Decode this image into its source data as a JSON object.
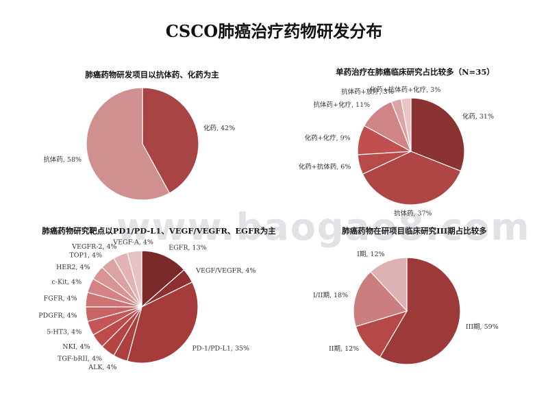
{
  "page": {
    "title": "CSCO肺癌治疗药物研发分布"
  },
  "watermark": "www.baogao8.com",
  "chart_data": [
    {
      "type": "pie",
      "title": "肺癌药物研发项目以抗体药、化药为主",
      "slices": [
        {
          "label": "化药",
          "value": 42,
          "display": "化药, 42%",
          "color": "#a84444"
        },
        {
          "label": "抗体药",
          "value": 58,
          "display": "抗体药, 58%",
          "color": "#d09090"
        }
      ]
    },
    {
      "type": "pie",
      "title": "单药治疗在肺癌临床研究占比较多（N=35）",
      "slices": [
        {
          "label": "化药",
          "value": 31,
          "display": "化药, 31%",
          "color": "#8b3232"
        },
        {
          "label": "抗体药",
          "value": 37,
          "display": "抗体药, 37%",
          "color": "#b04545"
        },
        {
          "label": "化药+抗体药",
          "value": 6,
          "display": "化药+抗体药, 6%",
          "color": "#b84a4a"
        },
        {
          "label": "化药+化疗",
          "value": 9,
          "display": "化药+化疗, 9%",
          "color": "#c05050"
        },
        {
          "label": "抗体药+化疗",
          "value": 11,
          "display": "抗体药+化疗, 11%",
          "color": "#cf8585"
        },
        {
          "label": "抗体药+放疗",
          "value": 3,
          "display": "抗体药+放疗, 3%",
          "color": "#dba4a4"
        },
        {
          "label": "化药+抗体药+化疗",
          "value": 3,
          "display": "化药+抗体药+化疗, 3%",
          "color": "#e8c4c4"
        }
      ]
    },
    {
      "type": "pie",
      "title": "肺癌药物研究靶点以PD1/PD-L1、VEGF/VEGFR、EGFR为主",
      "slices": [
        {
          "label": "EGFR",
          "value": 13,
          "display": "EGFR, 13%",
          "color": "#7b2a2a"
        },
        {
          "label": "VEGF/VEGFR",
          "value": 4,
          "display": "VEGF/VEGFR, 4%",
          "color": "#8e3030"
        },
        {
          "label": "PD-1/PD-L1",
          "value": 35,
          "display": "PD-1/PD-L1, 35%",
          "color": "#a53b3b"
        },
        {
          "label": "ALK",
          "value": 4,
          "display": "ALK, 4%",
          "color": "#ad3f3f"
        },
        {
          "label": "TGF-bRII",
          "value": 4,
          "display": "TGF-bRII, 4%",
          "color": "#b54545"
        },
        {
          "label": "NKI",
          "value": 4,
          "display": "NKI, 4%",
          "color": "#bd4b4b"
        },
        {
          "label": "5-HT3",
          "value": 4,
          "display": "5-HT3, 4%",
          "color": "#c45656"
        },
        {
          "label": "PDGFR",
          "value": 4,
          "display": "PDGFR, 4%",
          "color": "#c96464"
        },
        {
          "label": "FGFR",
          "value": 4,
          "display": "FGFR, 4%",
          "color": "#ce7373"
        },
        {
          "label": "c-Kit",
          "value": 4,
          "display": "c-Kit, 4%",
          "color": "#d38383"
        },
        {
          "label": "HER2",
          "value": 4,
          "display": "HER2, 4%",
          "color": "#d89393"
        },
        {
          "label": "TOP1",
          "value": 4,
          "display": "TOP1, 4%",
          "color": "#dca3a3"
        },
        {
          "label": "VEGFR-2",
          "value": 4,
          "display": "VEGFR-2, 4%",
          "color": "#e1b3b3"
        },
        {
          "label": "VEGF-A",
          "value": 4,
          "display": "VEGF-A, 4%",
          "color": "#e6c3c3"
        }
      ]
    },
    {
      "type": "pie",
      "title": "肺癌药物在研项目临床研究III期占比较多",
      "slices": [
        {
          "label": "III期",
          "value": 59,
          "display": "III期, 59%",
          "color": "#9c3939"
        },
        {
          "label": "II期",
          "value": 12,
          "display": "II期, 12%",
          "color": "#b64848"
        },
        {
          "label": "I/II期",
          "value": 18,
          "display": "I/II期, 18%",
          "color": "#cc7d7d"
        },
        {
          "label": "I期",
          "value": 12,
          "display": "I期, 12%",
          "color": "#ddb1b1"
        }
      ]
    }
  ]
}
